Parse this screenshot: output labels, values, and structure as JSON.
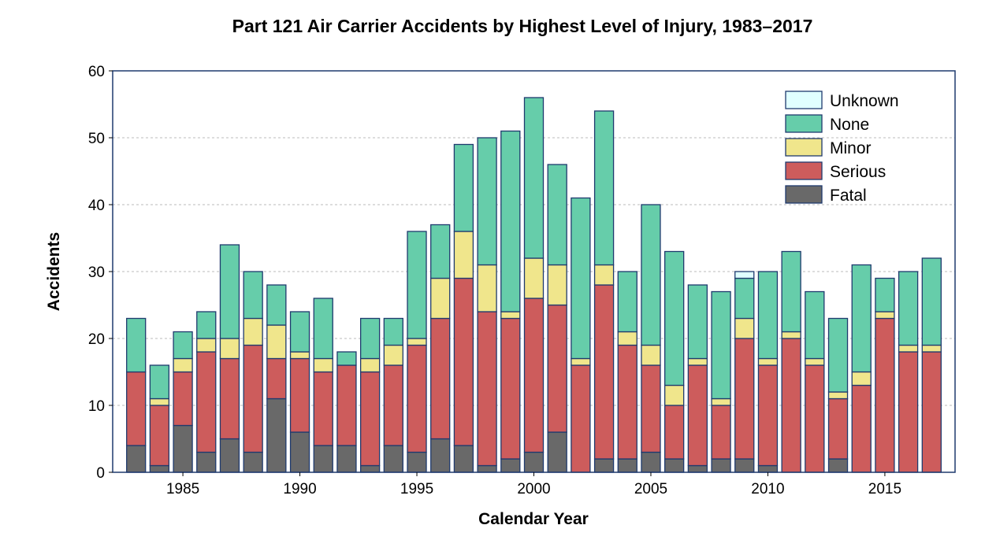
{
  "chart_data": {
    "type": "bar",
    "stacked": true,
    "title": "Part 121 Air Carrier Accidents by Highest Level of Injury, 1983–2017",
    "xlabel": "Calendar Year",
    "ylabel": "Accidents",
    "ylim": [
      0,
      60
    ],
    "xlim": [
      1982,
      2018
    ],
    "yticks": [
      0,
      10,
      20,
      30,
      40,
      50,
      60
    ],
    "xticks": [
      1985,
      1990,
      1995,
      2000,
      2005,
      2010,
      2015
    ],
    "grid": "horizontal dashed",
    "legend_position": "top-right",
    "categories": [
      1983,
      1984,
      1985,
      1986,
      1987,
      1988,
      1989,
      1990,
      1991,
      1992,
      1993,
      1994,
      1995,
      1996,
      1997,
      1998,
      1999,
      2000,
      2001,
      2002,
      2003,
      2004,
      2005,
      2006,
      2007,
      2008,
      2009,
      2010,
      2011,
      2012,
      2013,
      2014,
      2015,
      2016,
      2017
    ],
    "series": [
      {
        "name": "Fatal",
        "color": "#696969",
        "values": [
          4,
          1,
          7,
          3,
          5,
          3,
          11,
          6,
          4,
          4,
          1,
          4,
          3,
          5,
          4,
          1,
          2,
          3,
          6,
          0,
          2,
          2,
          3,
          2,
          1,
          2,
          2,
          1,
          0,
          0,
          2,
          0,
          0,
          0,
          0
        ]
      },
      {
        "name": "Serious",
        "color": "#cd5c5c",
        "values": [
          11,
          9,
          8,
          15,
          12,
          16,
          6,
          11,
          11,
          12,
          14,
          12,
          16,
          18,
          25,
          23,
          21,
          23,
          19,
          16,
          26,
          17,
          13,
          8,
          15,
          8,
          18,
          15,
          20,
          16,
          9,
          13,
          23,
          18,
          18
        ]
      },
      {
        "name": "Minor",
        "color": "#f0e68c",
        "values": [
          0,
          1,
          2,
          2,
          3,
          4,
          5,
          1,
          2,
          0,
          2,
          3,
          1,
          6,
          7,
          7,
          1,
          6,
          6,
          1,
          3,
          2,
          3,
          3,
          1,
          1,
          3,
          1,
          1,
          1,
          1,
          2,
          1,
          1,
          1
        ]
      },
      {
        "name": "None",
        "color": "#66cdaa",
        "values": [
          8,
          5,
          4,
          4,
          14,
          7,
          6,
          6,
          9,
          2,
          6,
          4,
          16,
          8,
          13,
          19,
          27,
          24,
          15,
          24,
          23,
          9,
          21,
          20,
          11,
          16,
          6,
          13,
          12,
          10,
          11,
          16,
          5,
          11,
          13
        ]
      },
      {
        "name": "Unknown",
        "color": "#e0ffff",
        "values": [
          0,
          0,
          0,
          0,
          0,
          0,
          0,
          0,
          0,
          0,
          0,
          0,
          0,
          0,
          0,
          0,
          0,
          0,
          0,
          0,
          0,
          0,
          0,
          0,
          0,
          0,
          1,
          0,
          0,
          0,
          0,
          0,
          0,
          0,
          0
        ]
      }
    ],
    "legend_order": [
      "Unknown",
      "None",
      "Minor",
      "Serious",
      "Fatal"
    ],
    "edge_color": "#1f3a6e"
  }
}
